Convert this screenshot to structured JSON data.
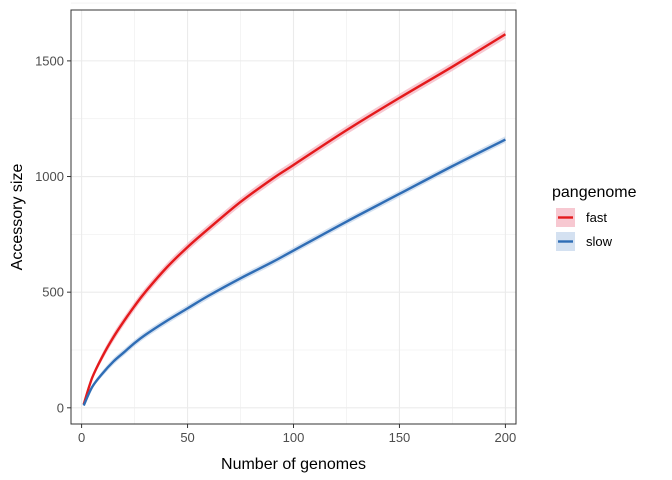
{
  "chart_data": {
    "type": "line",
    "xlabel": "Number of genomes",
    "ylabel": "Accessory size",
    "xlim": [
      -5,
      205
    ],
    "ylim": [
      -70,
      1720
    ],
    "x_ticks": [
      0,
      50,
      100,
      150,
      200
    ],
    "y_ticks": [
      0,
      500,
      1000,
      1500
    ],
    "grid": true,
    "legend": {
      "title": "pangenome",
      "position": "right"
    },
    "x": [
      1,
      5,
      10,
      15,
      20,
      25,
      30,
      40,
      50,
      60,
      75,
      90,
      100,
      125,
      150,
      175,
      200
    ],
    "series": [
      {
        "name": "fast",
        "color": "#e41a1c",
        "band_color": "#f4b6c2",
        "values": [
          15,
          130,
          225,
          305,
          375,
          440,
          500,
          605,
          695,
          775,
          890,
          990,
          1050,
          1200,
          1340,
          1475,
          1615
        ],
        "band": 18
      },
      {
        "name": "slow",
        "color": "#2f6db5",
        "band_color": "#c6d7ec",
        "values": [
          10,
          90,
          150,
          200,
          240,
          280,
          315,
          375,
          430,
          485,
          560,
          630,
          680,
          805,
          925,
          1045,
          1160
        ],
        "band": 14
      }
    ]
  }
}
